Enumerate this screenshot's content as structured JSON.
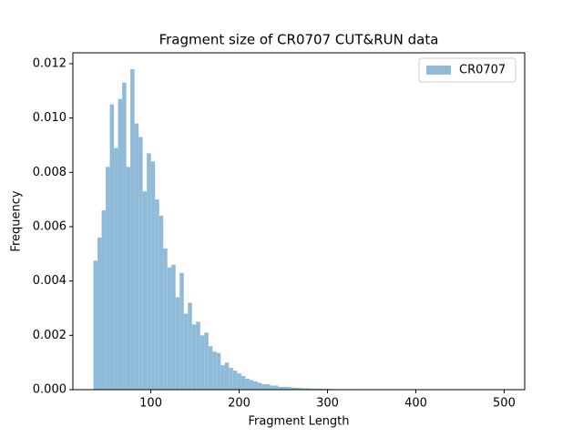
{
  "chart_data": {
    "type": "histogram",
    "title": "Fragment size of CR0707 CUT&RUN data",
    "xlabel": "Fragment Length",
    "ylabel": "Frequency",
    "bins": [
      35,
      39.65,
      44.3,
      48.95,
      53.6,
      58.25,
      62.9,
      67.55,
      72.2,
      76.85,
      81.5,
      86.15,
      90.8,
      95.45,
      100.1,
      104.75,
      109.4,
      114.05,
      118.7,
      123.35,
      128,
      132.65,
      137.3,
      141.95,
      146.6,
      151.25,
      155.9,
      160.55,
      165.2,
      169.85,
      174.5,
      179.15,
      183.8,
      188.45,
      193.1,
      197.75,
      202.4,
      207.05,
      211.7,
      216.35,
      221,
      225.65,
      230.3,
      234.95,
      239.6,
      244.25,
      248.9,
      253.55,
      258.2,
      262.85,
      267.5,
      272.15,
      276.8,
      281.45,
      286.1,
      290.75,
      295.4,
      300.05,
      304.7,
      309.35,
      314,
      318.65,
      323.3,
      327.95,
      332.6,
      337.25,
      341.9,
      346.55,
      351.2,
      355.85,
      360.5,
      365.15,
      369.8,
      374.45,
      379.1,
      383.75,
      388.4,
      393.05,
      397.7,
      402.35,
      407,
      411.65,
      416.3,
      420.95,
      425.6,
      430.25,
      434.9,
      439.55,
      444.2,
      448.85,
      453.5,
      458.15,
      462.8,
      467.45,
      472.1,
      476.75,
      481.4,
      486.05,
      490.7,
      495.35,
      500
    ],
    "series": [
      {
        "name": "CR0707",
        "color": "#8fbbd9",
        "values": [
          0.00475,
          0.0056,
          0.0066,
          0.0082,
          0.0105,
          0.0089,
          0.0107,
          0.0113,
          0.0082,
          0.0118,
          0.0098,
          0.0093,
          0.0073,
          0.0087,
          0.0084,
          0.007,
          0.0064,
          0.0052,
          0.0045,
          0.0046,
          0.0034,
          0.0043,
          0.0028,
          0.0032,
          0.0024,
          0.0025,
          0.002,
          0.0021,
          0.0016,
          0.0014,
          0.00135,
          0.0009,
          0.001,
          0.0008,
          0.0007,
          0.0006,
          0.0005,
          0.0004,
          0.00035,
          0.0003,
          0.00025,
          0.0002,
          0.0002,
          0.00015,
          0.00015,
          0.0001,
          0.0001,
          0.0001,
          8e-05,
          7e-05,
          6e-05,
          5e-05,
          5e-05,
          4e-05,
          4e-05,
          3e-05,
          3e-05,
          3e-05,
          2e-05,
          2e-05,
          2e-05,
          2e-05,
          2e-05,
          1e-05,
          1e-05,
          1e-05,
          1e-05,
          1e-05,
          1e-05,
          1e-05,
          1e-05,
          1e-05,
          1e-05,
          1e-05,
          1e-05,
          1e-05,
          1e-05,
          1e-05,
          1e-05,
          1e-05,
          1e-05,
          1e-05,
          1e-05,
          1e-05,
          1e-05,
          5e-06,
          5e-06,
          5e-06,
          5e-06,
          5e-06,
          5e-06,
          5e-06,
          5e-06,
          5e-06,
          5e-06,
          5e-06,
          5e-06,
          5e-06,
          5e-06,
          5e-06
        ]
      }
    ],
    "xlim": [
      11.75,
      523.25
    ],
    "ylim": [
      0,
      0.0124
    ],
    "xticks": [
      100,
      200,
      300,
      400,
      500
    ],
    "yticks": [
      {
        "value": 0,
        "label": "0.000"
      },
      {
        "value": 0.002,
        "label": "0.002"
      },
      {
        "value": 0.004,
        "label": "0.004"
      },
      {
        "value": 0.006,
        "label": "0.006"
      },
      {
        "value": 0.008,
        "label": "0.008"
      },
      {
        "value": 0.01,
        "label": "0.010"
      },
      {
        "value": 0.012,
        "label": "0.012"
      }
    ],
    "legend": "upper right"
  }
}
